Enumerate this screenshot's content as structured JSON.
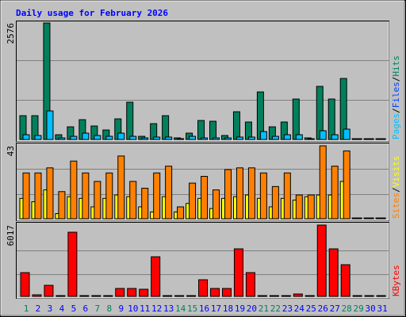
{
  "chart_data": {
    "type": "bar",
    "title": "Daily usage for February 2026",
    "categories": [
      "1",
      "2",
      "3",
      "4",
      "5",
      "6",
      "7",
      "8",
      "9",
      "10",
      "11",
      "12",
      "13",
      "14",
      "15",
      "16",
      "17",
      "18",
      "19",
      "20",
      "21",
      "22",
      "23",
      "24",
      "25",
      "26",
      "27",
      "28",
      "29",
      "30",
      "31"
    ],
    "category_colors": [
      "#00805c",
      "#0000ff",
      "#0000ff",
      "#0000ff",
      "#0000ff",
      "#0000ff",
      "#00805c",
      "#00805c",
      "#0000ff",
      "#0000ff",
      "#0000ff",
      "#0000ff",
      "#0000ff",
      "#00805c",
      "#00805c",
      "#0000ff",
      "#0000ff",
      "#0000ff",
      "#0000ff",
      "#0000ff",
      "#00805c",
      "#00805c",
      "#0000ff",
      "#0000ff",
      "#0000ff",
      "#0000ff",
      "#0000ff",
      "#00805c",
      "#00805c",
      "#0000ff",
      "#0000ff"
    ],
    "panels": [
      {
        "ylim": [
          0,
          2576
        ],
        "yticks": [
          2576
        ],
        "legend": [
          {
            "label": "Pages",
            "color": "#00c0ff"
          },
          {
            "label": "Files",
            "color": "#0040ff"
          },
          {
            "label": "Hits",
            "color": "#00805c"
          }
        ],
        "series": [
          {
            "color": "#00805c",
            "values": [
              526,
              526,
              2576,
              105,
              280,
              438,
              298,
              210,
              456,
              824,
              70,
              350,
              526,
              35,
              140,
              420,
              403,
              88,
              613,
              386,
              1051,
              280,
              386,
              894,
              35,
              1174,
              894,
              1349,
              0,
              0,
              0
            ]
          },
          {
            "color": "#00c0ff",
            "values": [
              105,
              88,
              631,
              35,
              70,
              140,
              88,
              70,
              140,
              70,
              35,
              53,
              53,
              18,
              70,
              35,
              35,
              35,
              53,
              53,
              175,
              70,
              105,
              105,
              18,
              193,
              105,
              228,
              0,
              0,
              0
            ]
          }
        ]
      },
      {
        "ylim": [
          0,
          43
        ],
        "yticks": [
          43
        ],
        "legend": [
          {
            "label": "Sites",
            "color": "#ff8000"
          },
          {
            "label": "Visits",
            "color": "#ffff00"
          }
        ],
        "series": [
          {
            "color": "#ffff00",
            "values": [
              12,
              10,
              17,
              3,
              13,
              12,
              7,
              12,
              14,
              13,
              7,
              4,
              13,
              4,
              9,
              12,
              6,
              12,
              13,
              14,
              12,
              7,
              12,
              11,
              13,
              14,
              14,
              22,
              0,
              0,
              0
            ]
          },
          {
            "color": "#ff8000",
            "values": [
              27,
              27,
              30,
              16,
              34,
              27,
              22,
              27,
              37,
              22,
              18,
              27,
              31,
              7,
              21,
              25,
              17,
              29,
              30,
              30,
              27,
              19,
              27,
              14,
              14,
              43,
              31,
              40,
              0,
              0,
              0
            ]
          }
        ]
      },
      {
        "ylim": [
          0,
          6017
        ],
        "yticks": [
          6017
        ],
        "legend": [
          {
            "label": "KBytes",
            "color": "#ff0000"
          }
        ],
        "series": [
          {
            "color": "#ff0000",
            "values": [
              2006,
              134,
              936,
              20,
              5415,
              20,
              20,
              20,
              669,
              669,
              602,
              3343,
              20,
              20,
              20,
              1404,
              669,
              669,
              4011,
              2006,
              67,
              20,
              20,
              201,
              20,
              6017,
              4011,
              2674,
              0,
              0,
              0
            ]
          }
        ]
      }
    ]
  }
}
